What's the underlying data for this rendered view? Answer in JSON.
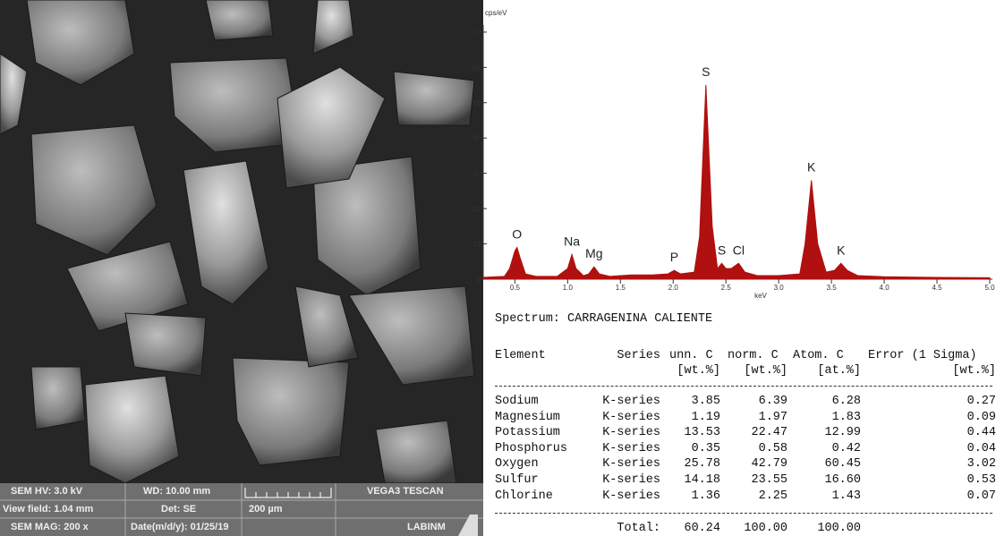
{
  "sem_image": {
    "hv": "SEM HV: 3.0 kV",
    "wd": "WD: 10.00 mm",
    "brand": "VEGA3 TESCAN",
    "view_field": "View field: 1.04 mm",
    "detector": "Det: SE",
    "scale": "200 µm",
    "mag": "SEM MAG: 200 x",
    "date": "Date(m/d/y): 01/25/19",
    "lab": "LABINM"
  },
  "chart_data": {
    "type": "area",
    "y_label": "cps/eV",
    "x_label": "keV",
    "color": "#b0100f",
    "x": [
      0.2,
      0.4,
      0.45,
      0.5,
      0.52,
      0.55,
      0.6,
      0.7,
      0.9,
      1.0,
      1.04,
      1.08,
      1.15,
      1.2,
      1.25,
      1.3,
      1.4,
      1.6,
      1.8,
      1.95,
      2.01,
      2.07,
      2.2,
      2.25,
      2.31,
      2.37,
      2.42,
      2.46,
      2.5,
      2.55,
      2.62,
      2.68,
      2.8,
      3.0,
      3.2,
      3.25,
      3.31,
      3.37,
      3.45,
      3.53,
      3.59,
      3.65,
      3.75,
      4.0,
      4.5,
      5.0
    ],
    "values": [
      0.5,
      0.8,
      3,
      8,
      9,
      6,
      1.5,
      0.8,
      0.8,
      3,
      7,
      3,
      1,
      1.5,
      3.5,
      1.5,
      0.8,
      1.2,
      1.2,
      1.5,
      2.5,
      1.5,
      2,
      12,
      55,
      15,
      3,
      4.5,
      3,
      3,
      4.5,
      2,
      1,
      1,
      1.5,
      10,
      28,
      10,
      2,
      2.5,
      4.5,
      2.5,
      1,
      0.7,
      0.5,
      0.4
    ],
    "xlim": [
      0.2,
      5.0
    ],
    "ylim": [
      0,
      72
    ],
    "xticks": [
      0.5,
      {
        "value": 1,
        "label": "1.0"
      },
      1.5,
      {
        "value": 2,
        "label": "2.0"
      },
      2.5,
      {
        "value": 3,
        "label": "3.0"
      },
      3.5,
      {
        "value": 4,
        "label": "4.0"
      },
      4.5,
      {
        "value": 5,
        "label": "5.0"
      }
    ],
    "yticks": [
      0,
      10,
      20,
      30,
      40,
      50,
      60,
      70
    ],
    "annotations": [
      {
        "text": "O",
        "x": 0.52,
        "y": 9
      },
      {
        "text": "Na",
        "x": 1.04,
        "y": 7
      },
      {
        "text": "Mg",
        "x": 1.25,
        "y": 3.5
      },
      {
        "text": "P",
        "x": 2.01,
        "y": 2.5
      },
      {
        "text": "S",
        "x": 2.31,
        "y": 55
      },
      {
        "text": "S",
        "x": 2.46,
        "y": 4.5
      },
      {
        "text": "Cl",
        "x": 2.62,
        "y": 4.5
      },
      {
        "text": "K",
        "x": 3.31,
        "y": 28
      },
      {
        "text": "K",
        "x": 3.59,
        "y": 4.5
      }
    ]
  },
  "spectrum_title": "Spectrum: CARRAGENINA CALIENTE",
  "table": {
    "header_1": [
      "Element",
      "Series",
      "unn. C",
      "norm. C",
      "Atom. C",
      "Error (1 Sigma)"
    ],
    "header_2": [
      "[wt.%]",
      "[wt.%]",
      "[at.%]",
      "[wt.%]"
    ],
    "rows": [
      [
        "Sodium",
        "K-series",
        "3.85",
        "6.39",
        "6.28",
        "0.27"
      ],
      [
        "Magnesium",
        "K-series",
        "1.19",
        "1.97",
        "1.83",
        "0.09"
      ],
      [
        "Potassium",
        "K-series",
        "13.53",
        "22.47",
        "12.99",
        "0.44"
      ],
      [
        "Phosphorus",
        "K-series",
        "0.35",
        "0.58",
        "0.42",
        "0.04"
      ],
      [
        "Oxygen",
        "K-series",
        "25.78",
        "42.79",
        "60.45",
        "3.02"
      ],
      [
        "Sulfur",
        "K-series",
        "14.18",
        "23.55",
        "16.60",
        "0.53"
      ],
      [
        "Chlorine",
        "K-series",
        "1.36",
        "2.25",
        "1.43",
        "0.07"
      ]
    ],
    "total": [
      "Total:",
      "60.24",
      "100.00",
      "100.00"
    ]
  }
}
